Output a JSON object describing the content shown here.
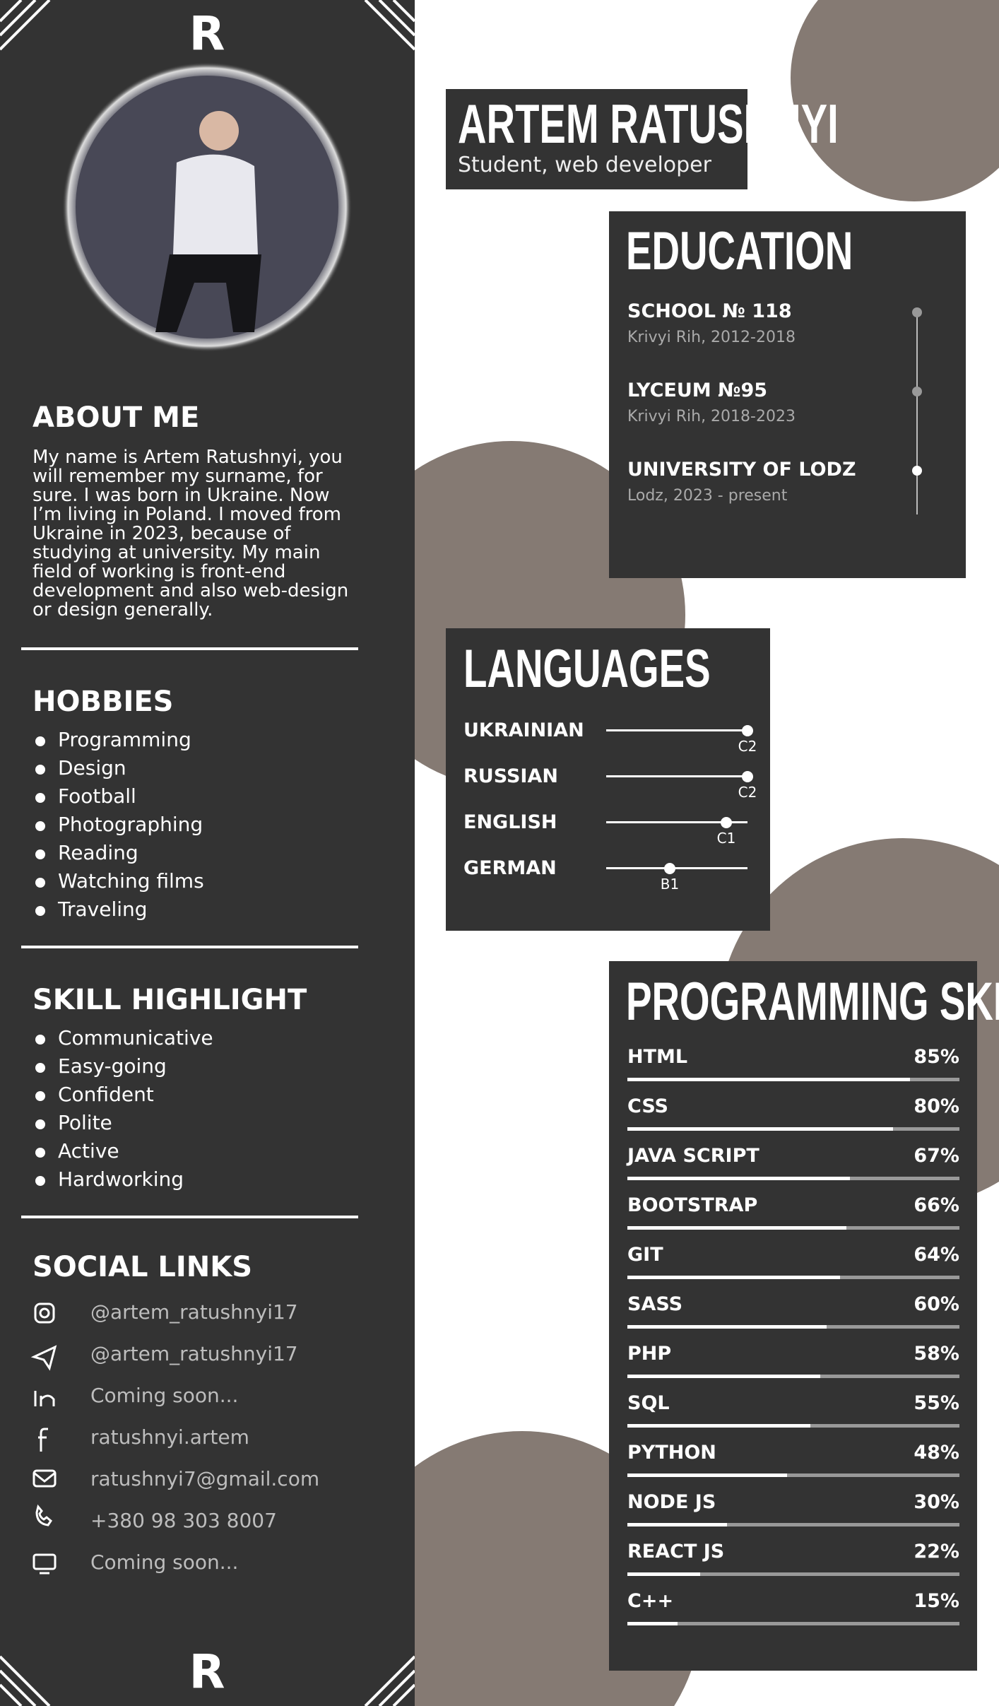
{
  "header": {
    "name": "ARTEM RATUSHNYI",
    "subtitle": "Student, web developer"
  },
  "about": {
    "title": "ABOUT ME",
    "text": "My name is Artem Ratushnyi, you will remember my surname, for sure. I was born in Ukraine. Now I’m living in Poland. I moved from Ukraine in 2023, because of studying at university. My main field of working is front-end development and also web-design or design generally."
  },
  "hobbies": {
    "title": "HOBBIES",
    "items": [
      "Programming",
      "Design",
      "Football",
      "Photographing",
      "Reading",
      "Watching films",
      "Traveling"
    ]
  },
  "skill_highlight": {
    "title": "SKILL HIGHLIGHT",
    "items": [
      "Communicative",
      "Easy-going",
      "Confident",
      "Polite",
      "Active",
      "Hardworking"
    ]
  },
  "social": {
    "title": "SOCIAL LINKS",
    "items": [
      "@artem_ratushnyi17",
      "@artem_ratushnyi17",
      "Coming soon...",
      "ratushnyi.artem",
      "ratushnyi7@gmail.com",
      "+380 98 303 8007",
      "Coming soon..."
    ]
  },
  "education": {
    "title": "EDUCATION",
    "items": [
      {
        "name": "SCHOOL № 118",
        "place": "Krivyi Rih, 2012-2018"
      },
      {
        "name": "LYCEUM №95",
        "place": "Krivyi Rih, 2018-2023"
      },
      {
        "name": "UNIVERSITY OF LODZ",
        "place": "Lodz, 2023 - present"
      }
    ]
  },
  "languages": {
    "title": "LANGUAGES",
    "items": [
      {
        "name": "UKRAINIAN",
        "level": "C2",
        "proficiency": 100
      },
      {
        "name": "RUSSIAN",
        "level": "C2",
        "proficiency": 100
      },
      {
        "name": "ENGLISH",
        "level": "C1",
        "proficiency": 85
      },
      {
        "name": "GERMAN",
        "level": "B1",
        "proficiency": 45
      }
    ]
  },
  "programming": {
    "title": "PROGRAMMING SKILLS",
    "items": [
      {
        "name": "HTML",
        "value": 85,
        "value_label": "85%"
      },
      {
        "name": "CSS",
        "value": 80,
        "value_label": "80%"
      },
      {
        "name": "JAVA SCRIPT",
        "value": 67,
        "value_label": "67%"
      },
      {
        "name": "BOOTSTRAP",
        "value": 66,
        "value_label": "66%"
      },
      {
        "name": "GIT",
        "value": 64,
        "value_label": "64%"
      },
      {
        "name": "SASS",
        "value": 60,
        "value_label": "60%"
      },
      {
        "name": "PHP",
        "value": 58,
        "value_label": "58%"
      },
      {
        "name": "SQL",
        "value": 55,
        "value_label": "55%"
      },
      {
        "name": "PYTHON",
        "value": 48,
        "value_label": "48%"
      },
      {
        "name": "NODE JS",
        "value": 30,
        "value_label": "30%"
      },
      {
        "name": "REACT JS",
        "value": 22,
        "value_label": "22%"
      },
      {
        "name": "C++",
        "value": 15,
        "value_label": "15%"
      }
    ]
  }
}
